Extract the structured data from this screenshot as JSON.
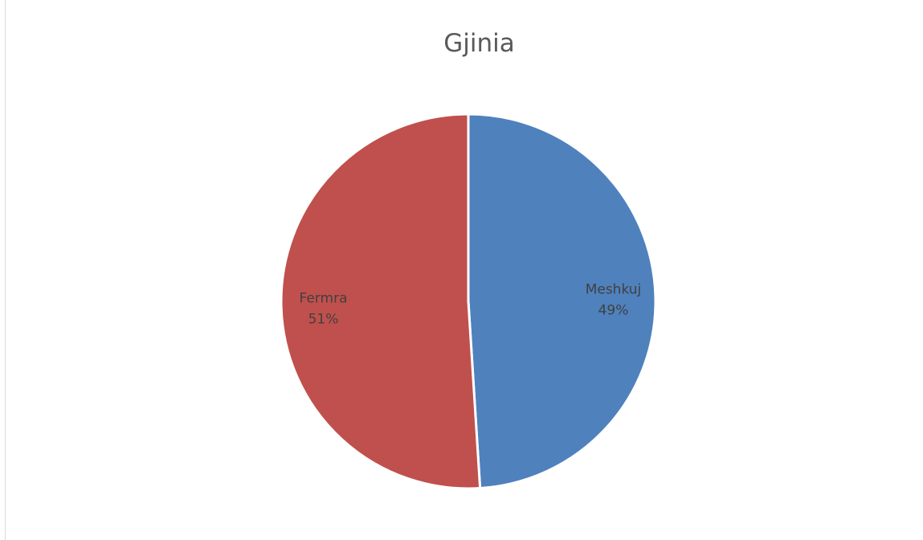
{
  "chart_data": {
    "type": "pie",
    "title": "Gjinia",
    "slices": [
      {
        "label": "Meshkuj",
        "percent_label": "49%",
        "value": 49,
        "color": "#4f81bd"
      },
      {
        "label": "Fermra",
        "percent_label": "51%",
        "value": 51,
        "color": "#c0504d"
      }
    ],
    "start_angle_deg": 0,
    "direction": "clockwise",
    "slice_border_color": "#ffffff",
    "data_labels": "inside"
  }
}
